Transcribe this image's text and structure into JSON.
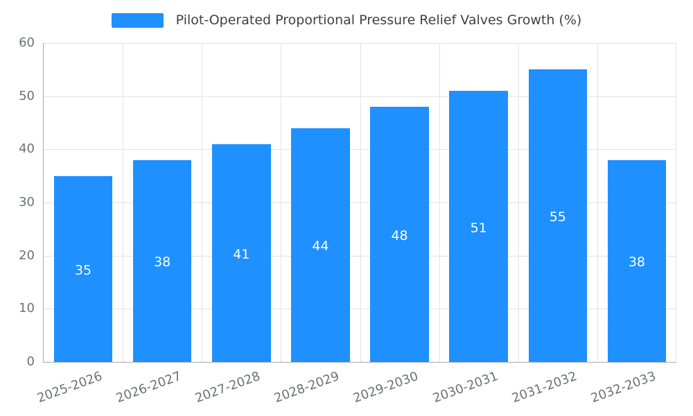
{
  "chart_data": {
    "type": "bar",
    "title": "Pilot-Operated Proportional Pressure Relief Valves Growth (%)",
    "categories": [
      "2025-2026",
      "2026-2027",
      "2027-2028",
      "2028-2029",
      "2029-2030",
      "2030-2031",
      "2031-2032",
      "2032-2033"
    ],
    "values": [
      35,
      38,
      41,
      44,
      48,
      51,
      55,
      38
    ],
    "xlabel": "",
    "ylabel": "",
    "ylim": [
      0,
      60
    ],
    "yticks": [
      0,
      10,
      20,
      30,
      40,
      50,
      60
    ],
    "grid": true,
    "legend_position": "top",
    "bar_color": "#1e90ff",
    "value_label_color": "#ffffff"
  }
}
